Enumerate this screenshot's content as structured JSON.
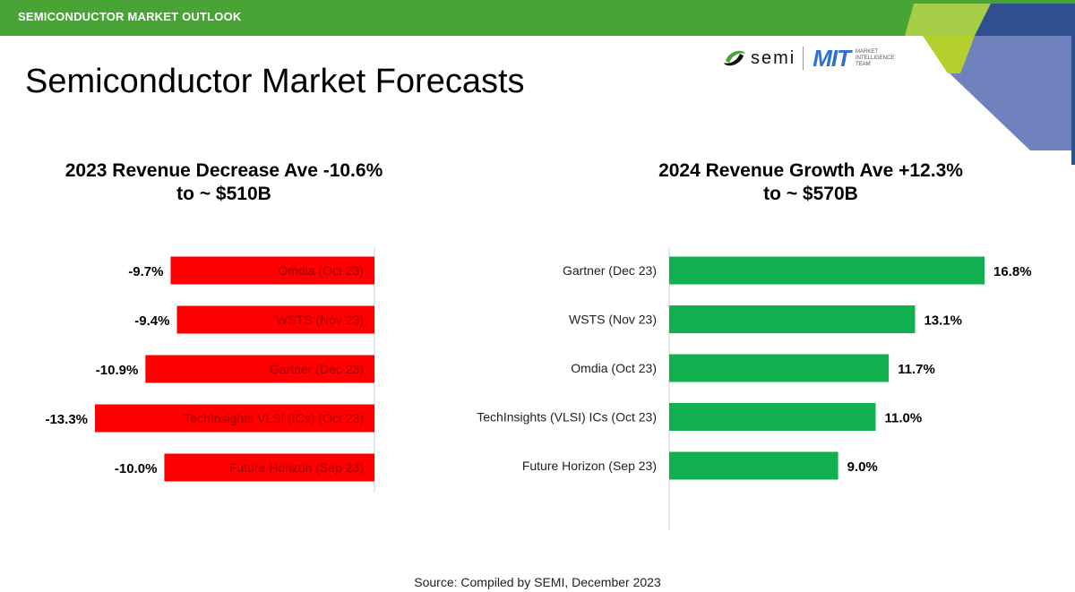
{
  "header": {
    "section_label": "SEMICONDUCTOR MARKET OUTLOOK"
  },
  "logos": {
    "semi_text": "semi",
    "mit_text": "MIT",
    "mit_subtitle": [
      "MARKET",
      "INTELLIGENCE",
      "TEAM"
    ]
  },
  "page_title": "Semiconductor Market Forecasts",
  "footer": {
    "source": "Source: Compiled by SEMI, December 2023"
  },
  "colors": {
    "green_bar": "#13b04f",
    "red_bar": "#ff0000",
    "header_green": "#48a535",
    "deco_lime": "#b5cf2e",
    "deco_blue": "#6f82bd",
    "deco_navy": "#2f4f8f"
  },
  "chart_data": [
    {
      "type": "bar",
      "orientation": "horizontal",
      "title": [
        "2023 Revenue Decrease Ave -10.6%",
        "to ~ $510B"
      ],
      "categories": [
        "Omdia (Oct 23)",
        "WSTS (Nov 23)",
        "Gartner (Dec 23)",
        "TechInsights VLSI (ICs) (Oct 23)",
        "Future Horizon (Sep 23)"
      ],
      "values": [
        -9.7,
        -9.4,
        -10.9,
        -13.3,
        -10.0
      ],
      "data_labels": [
        "-9.7%",
        "-9.4%",
        "-10.9%",
        "-13.3%",
        "-10.0%"
      ],
      "color": "#ff0000",
      "xlim": [
        -13.3,
        0
      ]
    },
    {
      "type": "bar",
      "orientation": "horizontal",
      "title": [
        "2024  Revenue Growth Ave +12.3%",
        "to ~ $570B"
      ],
      "categories": [
        "Gartner (Dec 23)",
        "WSTS (Nov 23)",
        "Omdia (Oct 23)",
        "TechInsights (VLSI) ICs (Oct 23)",
        "Future Horizon (Sep 23)"
      ],
      "values": [
        16.8,
        13.1,
        11.7,
        11.0,
        9.0
      ],
      "data_labels": [
        "16.8%",
        "13.1%",
        "11.7%",
        "11.0%",
        "9.0%"
      ],
      "color": "#13b04f",
      "xlim": [
        0,
        16.8
      ]
    }
  ]
}
